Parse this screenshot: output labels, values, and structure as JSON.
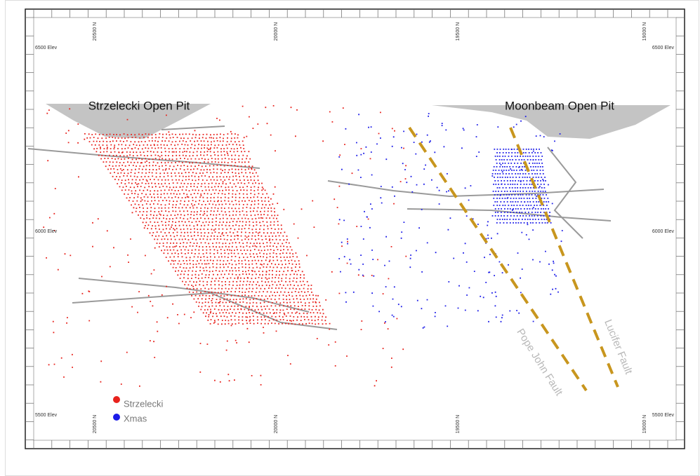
{
  "grid": {
    "northings_top": [
      "20500 N",
      "20000 N",
      "19500 N",
      "19000 N"
    ],
    "northings_bottom": [
      "20500 N",
      "20000 N",
      "19500 N",
      "19000 N"
    ],
    "elevations_left": [
      "6500 Elev",
      "6000 Elev",
      "5500 Elev"
    ],
    "elevations_right": [
      "6500 Elev",
      "6000 Elev",
      "5500 Elev"
    ]
  },
  "pits": [
    {
      "label": "Strzelecki Open Pit"
    },
    {
      "label": "Moonbeam Open Pit"
    }
  ],
  "faults": [
    {
      "label": "Pope John Fault"
    },
    {
      "label": "Lucifer Fault"
    }
  ],
  "legend": [
    {
      "label": "Strzelecki",
      "color": "#e8221c"
    },
    {
      "label": "Xmas",
      "color": "#1c1ce8"
    }
  ]
}
